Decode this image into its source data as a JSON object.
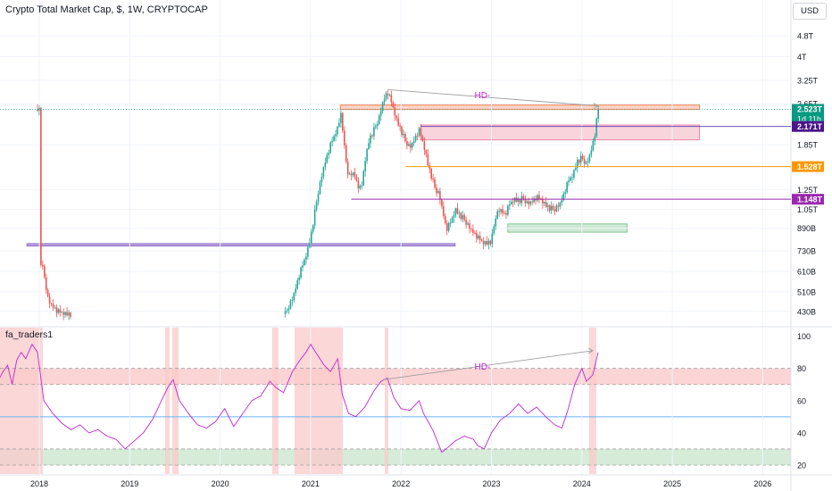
{
  "header": {
    "title": "Crypto Total Market Cap, $, 1W, CRYPTOCAP",
    "currency": "USD"
  },
  "indicator": {
    "title": "fa_traders1"
  },
  "colors": {
    "up": "#26a69a",
    "down": "#ef5350",
    "hd": "#c026d3",
    "rsi": "#c026d3",
    "resistance": "#ef8354",
    "support_purple": "#9b27b0",
    "orange_level": "#f59e0b",
    "blue_line": "#2196f3",
    "zone_red": "#f7c5c5",
    "zone_green": "#cde8d3"
  },
  "chart_data": [
    {
      "type": "candlestick",
      "price_scale": "log",
      "y_ticks": [
        "4.8T",
        "4T",
        "3.25T",
        "2.65T",
        "1.85T",
        "1.25T",
        "1.05T",
        "890B",
        "730B",
        "610B",
        "510B",
        "430B"
      ],
      "x_ticks": [
        "2018",
        "2019",
        "2020",
        "2021",
        "2022",
        "2023",
        "2024",
        "2025",
        "2026"
      ],
      "price_labels": [
        {
          "label": "2.523T",
          "sub": "1d 11h",
          "color": "#089981"
        },
        {
          "label": "2.171T",
          "color": "#4a148c"
        },
        {
          "label": "1.528T",
          "color": "#ff9800"
        },
        {
          "label": "1.148T",
          "color": "#9c27b0"
        }
      ],
      "annotations": [
        "HD-"
      ],
      "close_path": [
        [
          2018.0,
          700
        ],
        [
          2018.05,
          600
        ],
        [
          2018.1,
          470
        ],
        [
          2018.2,
          430
        ],
        [
          2018.3,
          420
        ],
        [
          2020.72,
          420
        ],
        [
          2020.8,
          480
        ],
        [
          2020.88,
          600
        ],
        [
          2020.96,
          720
        ],
        [
          2021.0,
          820
        ],
        [
          2021.08,
          1200
        ],
        [
          2021.15,
          1550
        ],
        [
          2021.22,
          1850
        ],
        [
          2021.3,
          2150
        ],
        [
          2021.34,
          2450
        ],
        [
          2021.38,
          1700
        ],
        [
          2021.42,
          1400
        ],
        [
          2021.48,
          1450
        ],
        [
          2021.52,
          1300
        ],
        [
          2021.56,
          1250
        ],
        [
          2021.6,
          1600
        ],
        [
          2021.65,
          1950
        ],
        [
          2021.7,
          2100
        ],
        [
          2021.76,
          2350
        ],
        [
          2021.8,
          2700
        ],
        [
          2021.85,
          2950
        ],
        [
          2021.9,
          2650
        ],
        [
          2021.95,
          2300
        ],
        [
          2022.0,
          2100
        ],
        [
          2022.05,
          1900
        ],
        [
          2022.1,
          1800
        ],
        [
          2022.15,
          1950
        ],
        [
          2022.2,
          2100
        ],
        [
          2022.25,
          1850
        ],
        [
          2022.3,
          1550
        ],
        [
          2022.38,
          1250
        ],
        [
          2022.42,
          1200
        ],
        [
          2022.47,
          1000
        ],
        [
          2022.5,
          880
        ],
        [
          2022.55,
          940
        ],
        [
          2022.6,
          1050
        ],
        [
          2022.65,
          1000
        ],
        [
          2022.7,
          960
        ],
        [
          2022.75,
          900
        ],
        [
          2022.8,
          860
        ],
        [
          2022.85,
          820
        ],
        [
          2022.9,
          790
        ],
        [
          2022.95,
          780
        ],
        [
          2023.0,
          800
        ],
        [
          2023.05,
          1000
        ],
        [
          2023.1,
          1050
        ],
        [
          2023.15,
          1000
        ],
        [
          2023.2,
          1100
        ],
        [
          2023.25,
          1150
        ],
        [
          2023.3,
          1130
        ],
        [
          2023.35,
          1160
        ],
        [
          2023.4,
          1100
        ],
        [
          2023.45,
          1130
        ],
        [
          2023.5,
          1170
        ],
        [
          2023.55,
          1140
        ],
        [
          2023.6,
          1090
        ],
        [
          2023.65,
          1060
        ],
        [
          2023.7,
          1050
        ],
        [
          2023.75,
          1090
        ],
        [
          2023.8,
          1200
        ],
        [
          2023.85,
          1350
        ],
        [
          2023.9,
          1420
        ],
        [
          2023.95,
          1600
        ],
        [
          2024.0,
          1650
        ],
        [
          2024.05,
          1550
        ],
        [
          2024.1,
          1750
        ],
        [
          2024.14,
          2000
        ],
        [
          2024.18,
          2523
        ]
      ]
    },
    {
      "type": "line",
      "name": "fa_traders1",
      "y_ticks": [
        100,
        80,
        60,
        40,
        20
      ],
      "ylim": [
        15,
        102
      ],
      "levels": [
        80,
        70,
        50,
        30,
        20
      ],
      "values": [
        [
          2017.55,
          73
        ],
        [
          2017.6,
          78
        ],
        [
          2017.65,
          82
        ],
        [
          2017.7,
          70
        ],
        [
          2017.75,
          85
        ],
        [
          2017.8,
          90
        ],
        [
          2017.85,
          86
        ],
        [
          2017.92,
          95
        ],
        [
          2017.98,
          90
        ],
        [
          2018.05,
          60
        ],
        [
          2018.15,
          52
        ],
        [
          2018.25,
          46
        ],
        [
          2018.35,
          42
        ],
        [
          2018.45,
          45
        ],
        [
          2018.55,
          40
        ],
        [
          2018.65,
          42
        ],
        [
          2018.75,
          38
        ],
        [
          2018.85,
          36
        ],
        [
          2018.95,
          30
        ],
        [
          2019.05,
          35
        ],
        [
          2019.15,
          40
        ],
        [
          2019.25,
          48
        ],
        [
          2019.35,
          60
        ],
        [
          2019.42,
          68
        ],
        [
          2019.48,
          73
        ],
        [
          2019.55,
          60
        ],
        [
          2019.65,
          52
        ],
        [
          2019.75,
          45
        ],
        [
          2019.85,
          43
        ],
        [
          2019.95,
          47
        ],
        [
          2020.05,
          55
        ],
        [
          2020.15,
          44
        ],
        [
          2020.25,
          52
        ],
        [
          2020.35,
          60
        ],
        [
          2020.45,
          63
        ],
        [
          2020.55,
          72
        ],
        [
          2020.62,
          68
        ],
        [
          2020.7,
          65
        ],
        [
          2020.8,
          78
        ],
        [
          2020.88,
          85
        ],
        [
          2020.95,
          90
        ],
        [
          2021.0,
          95
        ],
        [
          2021.08,
          88
        ],
        [
          2021.15,
          82
        ],
        [
          2021.22,
          78
        ],
        [
          2021.3,
          86
        ],
        [
          2021.35,
          64
        ],
        [
          2021.42,
          52
        ],
        [
          2021.5,
          50
        ],
        [
          2021.6,
          56
        ],
        [
          2021.7,
          66
        ],
        [
          2021.78,
          72
        ],
        [
          2021.85,
          74
        ],
        [
          2021.92,
          62
        ],
        [
          2022.0,
          55
        ],
        [
          2022.1,
          54
        ],
        [
          2022.2,
          60
        ],
        [
          2022.25,
          52
        ],
        [
          2022.35,
          42
        ],
        [
          2022.45,
          28
        ],
        [
          2022.5,
          30
        ],
        [
          2022.6,
          35
        ],
        [
          2022.7,
          38
        ],
        [
          2022.8,
          36
        ],
        [
          2022.85,
          32
        ],
        [
          2022.92,
          30
        ],
        [
          2023.0,
          40
        ],
        [
          2023.1,
          48
        ],
        [
          2023.2,
          52
        ],
        [
          2023.3,
          58
        ],
        [
          2023.4,
          52
        ],
        [
          2023.5,
          56
        ],
        [
          2023.6,
          50
        ],
        [
          2023.7,
          45
        ],
        [
          2023.78,
          43
        ],
        [
          2023.85,
          55
        ],
        [
          2023.92,
          70
        ],
        [
          2024.0,
          80
        ],
        [
          2024.05,
          72
        ],
        [
          2024.12,
          76
        ],
        [
          2024.18,
          90
        ]
      ],
      "annotations": [
        "HD-"
      ]
    }
  ]
}
